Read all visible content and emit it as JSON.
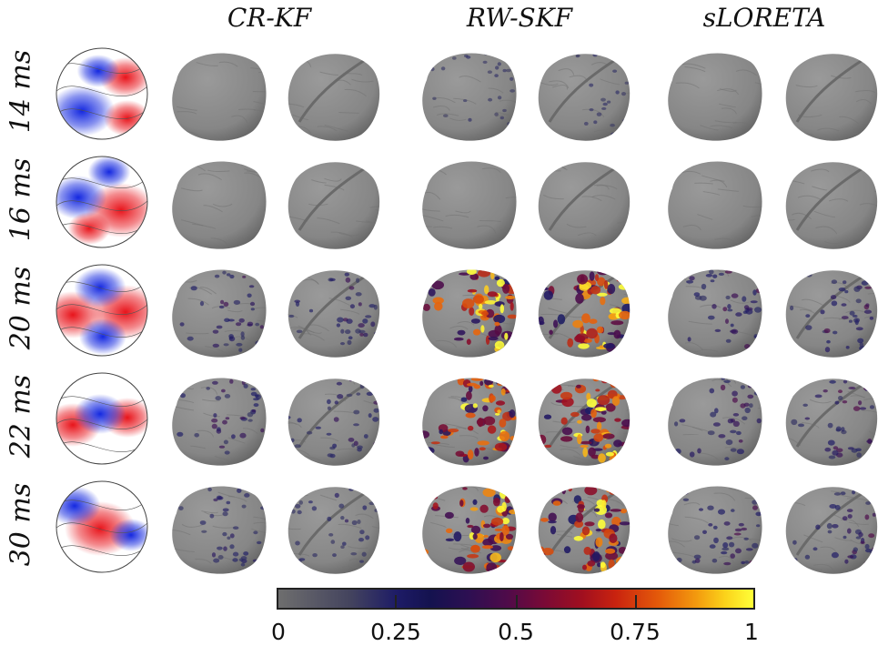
{
  "columns": [
    "CR-KF",
    "RW-SKF",
    "sLORETA"
  ],
  "rows": [
    "14 ms",
    "16 ms",
    "20 ms",
    "22 ms",
    "30 ms"
  ],
  "activation": {
    "CR-KF": [
      0.0,
      0.0,
      0.3,
      0.3,
      0.25
    ],
    "RW-SKF": [
      0.15,
      0.0,
      0.85,
      0.85,
      0.85
    ],
    "sLORETA": [
      0.0,
      0.0,
      0.35,
      0.35,
      0.35
    ]
  },
  "colorbar": {
    "tick_labels": [
      "0",
      "0.25",
      "0.5",
      "0.75",
      "1"
    ],
    "tick_values": [
      0,
      0.25,
      0.5,
      0.75,
      1
    ],
    "colors": [
      "#6e6e6e",
      "#1d1b66",
      "#4e0b4a",
      "#a10f1f",
      "#e45a0a",
      "#ffff38"
    ]
  },
  "colors": {
    "brain_gray": "#8a8a8a",
    "topo_positive": "#e8141b",
    "topo_negative": "#1428e0"
  }
}
